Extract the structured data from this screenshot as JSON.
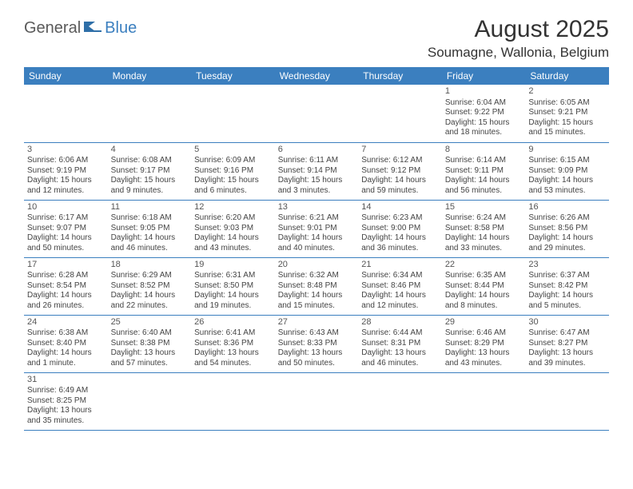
{
  "logo": {
    "part1": "General",
    "part2": "Blue"
  },
  "title": "August 2025",
  "location": "Soumagne, Wallonia, Belgium",
  "colors": {
    "header_bg": "#3b7fbf",
    "header_text": "#ffffff",
    "border": "#3b7fbf",
    "text": "#444444",
    "title_color": "#333333"
  },
  "day_headers": [
    "Sunday",
    "Monday",
    "Tuesday",
    "Wednesday",
    "Thursday",
    "Friday",
    "Saturday"
  ],
  "weeks": [
    [
      null,
      null,
      null,
      null,
      null,
      {
        "n": "1",
        "sr": "Sunrise: 6:04 AM",
        "ss": "Sunset: 9:22 PM",
        "dl": "Daylight: 15 hours and 18 minutes."
      },
      {
        "n": "2",
        "sr": "Sunrise: 6:05 AM",
        "ss": "Sunset: 9:21 PM",
        "dl": "Daylight: 15 hours and 15 minutes."
      }
    ],
    [
      {
        "n": "3",
        "sr": "Sunrise: 6:06 AM",
        "ss": "Sunset: 9:19 PM",
        "dl": "Daylight: 15 hours and 12 minutes."
      },
      {
        "n": "4",
        "sr": "Sunrise: 6:08 AM",
        "ss": "Sunset: 9:17 PM",
        "dl": "Daylight: 15 hours and 9 minutes."
      },
      {
        "n": "5",
        "sr": "Sunrise: 6:09 AM",
        "ss": "Sunset: 9:16 PM",
        "dl": "Daylight: 15 hours and 6 minutes."
      },
      {
        "n": "6",
        "sr": "Sunrise: 6:11 AM",
        "ss": "Sunset: 9:14 PM",
        "dl": "Daylight: 15 hours and 3 minutes."
      },
      {
        "n": "7",
        "sr": "Sunrise: 6:12 AM",
        "ss": "Sunset: 9:12 PM",
        "dl": "Daylight: 14 hours and 59 minutes."
      },
      {
        "n": "8",
        "sr": "Sunrise: 6:14 AM",
        "ss": "Sunset: 9:11 PM",
        "dl": "Daylight: 14 hours and 56 minutes."
      },
      {
        "n": "9",
        "sr": "Sunrise: 6:15 AM",
        "ss": "Sunset: 9:09 PM",
        "dl": "Daylight: 14 hours and 53 minutes."
      }
    ],
    [
      {
        "n": "10",
        "sr": "Sunrise: 6:17 AM",
        "ss": "Sunset: 9:07 PM",
        "dl": "Daylight: 14 hours and 50 minutes."
      },
      {
        "n": "11",
        "sr": "Sunrise: 6:18 AM",
        "ss": "Sunset: 9:05 PM",
        "dl": "Daylight: 14 hours and 46 minutes."
      },
      {
        "n": "12",
        "sr": "Sunrise: 6:20 AM",
        "ss": "Sunset: 9:03 PM",
        "dl": "Daylight: 14 hours and 43 minutes."
      },
      {
        "n": "13",
        "sr": "Sunrise: 6:21 AM",
        "ss": "Sunset: 9:01 PM",
        "dl": "Daylight: 14 hours and 40 minutes."
      },
      {
        "n": "14",
        "sr": "Sunrise: 6:23 AM",
        "ss": "Sunset: 9:00 PM",
        "dl": "Daylight: 14 hours and 36 minutes."
      },
      {
        "n": "15",
        "sr": "Sunrise: 6:24 AM",
        "ss": "Sunset: 8:58 PM",
        "dl": "Daylight: 14 hours and 33 minutes."
      },
      {
        "n": "16",
        "sr": "Sunrise: 6:26 AM",
        "ss": "Sunset: 8:56 PM",
        "dl": "Daylight: 14 hours and 29 minutes."
      }
    ],
    [
      {
        "n": "17",
        "sr": "Sunrise: 6:28 AM",
        "ss": "Sunset: 8:54 PM",
        "dl": "Daylight: 14 hours and 26 minutes."
      },
      {
        "n": "18",
        "sr": "Sunrise: 6:29 AM",
        "ss": "Sunset: 8:52 PM",
        "dl": "Daylight: 14 hours and 22 minutes."
      },
      {
        "n": "19",
        "sr": "Sunrise: 6:31 AM",
        "ss": "Sunset: 8:50 PM",
        "dl": "Daylight: 14 hours and 19 minutes."
      },
      {
        "n": "20",
        "sr": "Sunrise: 6:32 AM",
        "ss": "Sunset: 8:48 PM",
        "dl": "Daylight: 14 hours and 15 minutes."
      },
      {
        "n": "21",
        "sr": "Sunrise: 6:34 AM",
        "ss": "Sunset: 8:46 PM",
        "dl": "Daylight: 14 hours and 12 minutes."
      },
      {
        "n": "22",
        "sr": "Sunrise: 6:35 AM",
        "ss": "Sunset: 8:44 PM",
        "dl": "Daylight: 14 hours and 8 minutes."
      },
      {
        "n": "23",
        "sr": "Sunrise: 6:37 AM",
        "ss": "Sunset: 8:42 PM",
        "dl": "Daylight: 14 hours and 5 minutes."
      }
    ],
    [
      {
        "n": "24",
        "sr": "Sunrise: 6:38 AM",
        "ss": "Sunset: 8:40 PM",
        "dl": "Daylight: 14 hours and 1 minute."
      },
      {
        "n": "25",
        "sr": "Sunrise: 6:40 AM",
        "ss": "Sunset: 8:38 PM",
        "dl": "Daylight: 13 hours and 57 minutes."
      },
      {
        "n": "26",
        "sr": "Sunrise: 6:41 AM",
        "ss": "Sunset: 8:36 PM",
        "dl": "Daylight: 13 hours and 54 minutes."
      },
      {
        "n": "27",
        "sr": "Sunrise: 6:43 AM",
        "ss": "Sunset: 8:33 PM",
        "dl": "Daylight: 13 hours and 50 minutes."
      },
      {
        "n": "28",
        "sr": "Sunrise: 6:44 AM",
        "ss": "Sunset: 8:31 PM",
        "dl": "Daylight: 13 hours and 46 minutes."
      },
      {
        "n": "29",
        "sr": "Sunrise: 6:46 AM",
        "ss": "Sunset: 8:29 PM",
        "dl": "Daylight: 13 hours and 43 minutes."
      },
      {
        "n": "30",
        "sr": "Sunrise: 6:47 AM",
        "ss": "Sunset: 8:27 PM",
        "dl": "Daylight: 13 hours and 39 minutes."
      }
    ],
    [
      {
        "n": "31",
        "sr": "Sunrise: 6:49 AM",
        "ss": "Sunset: 8:25 PM",
        "dl": "Daylight: 13 hours and 35 minutes."
      },
      null,
      null,
      null,
      null,
      null,
      null
    ]
  ]
}
